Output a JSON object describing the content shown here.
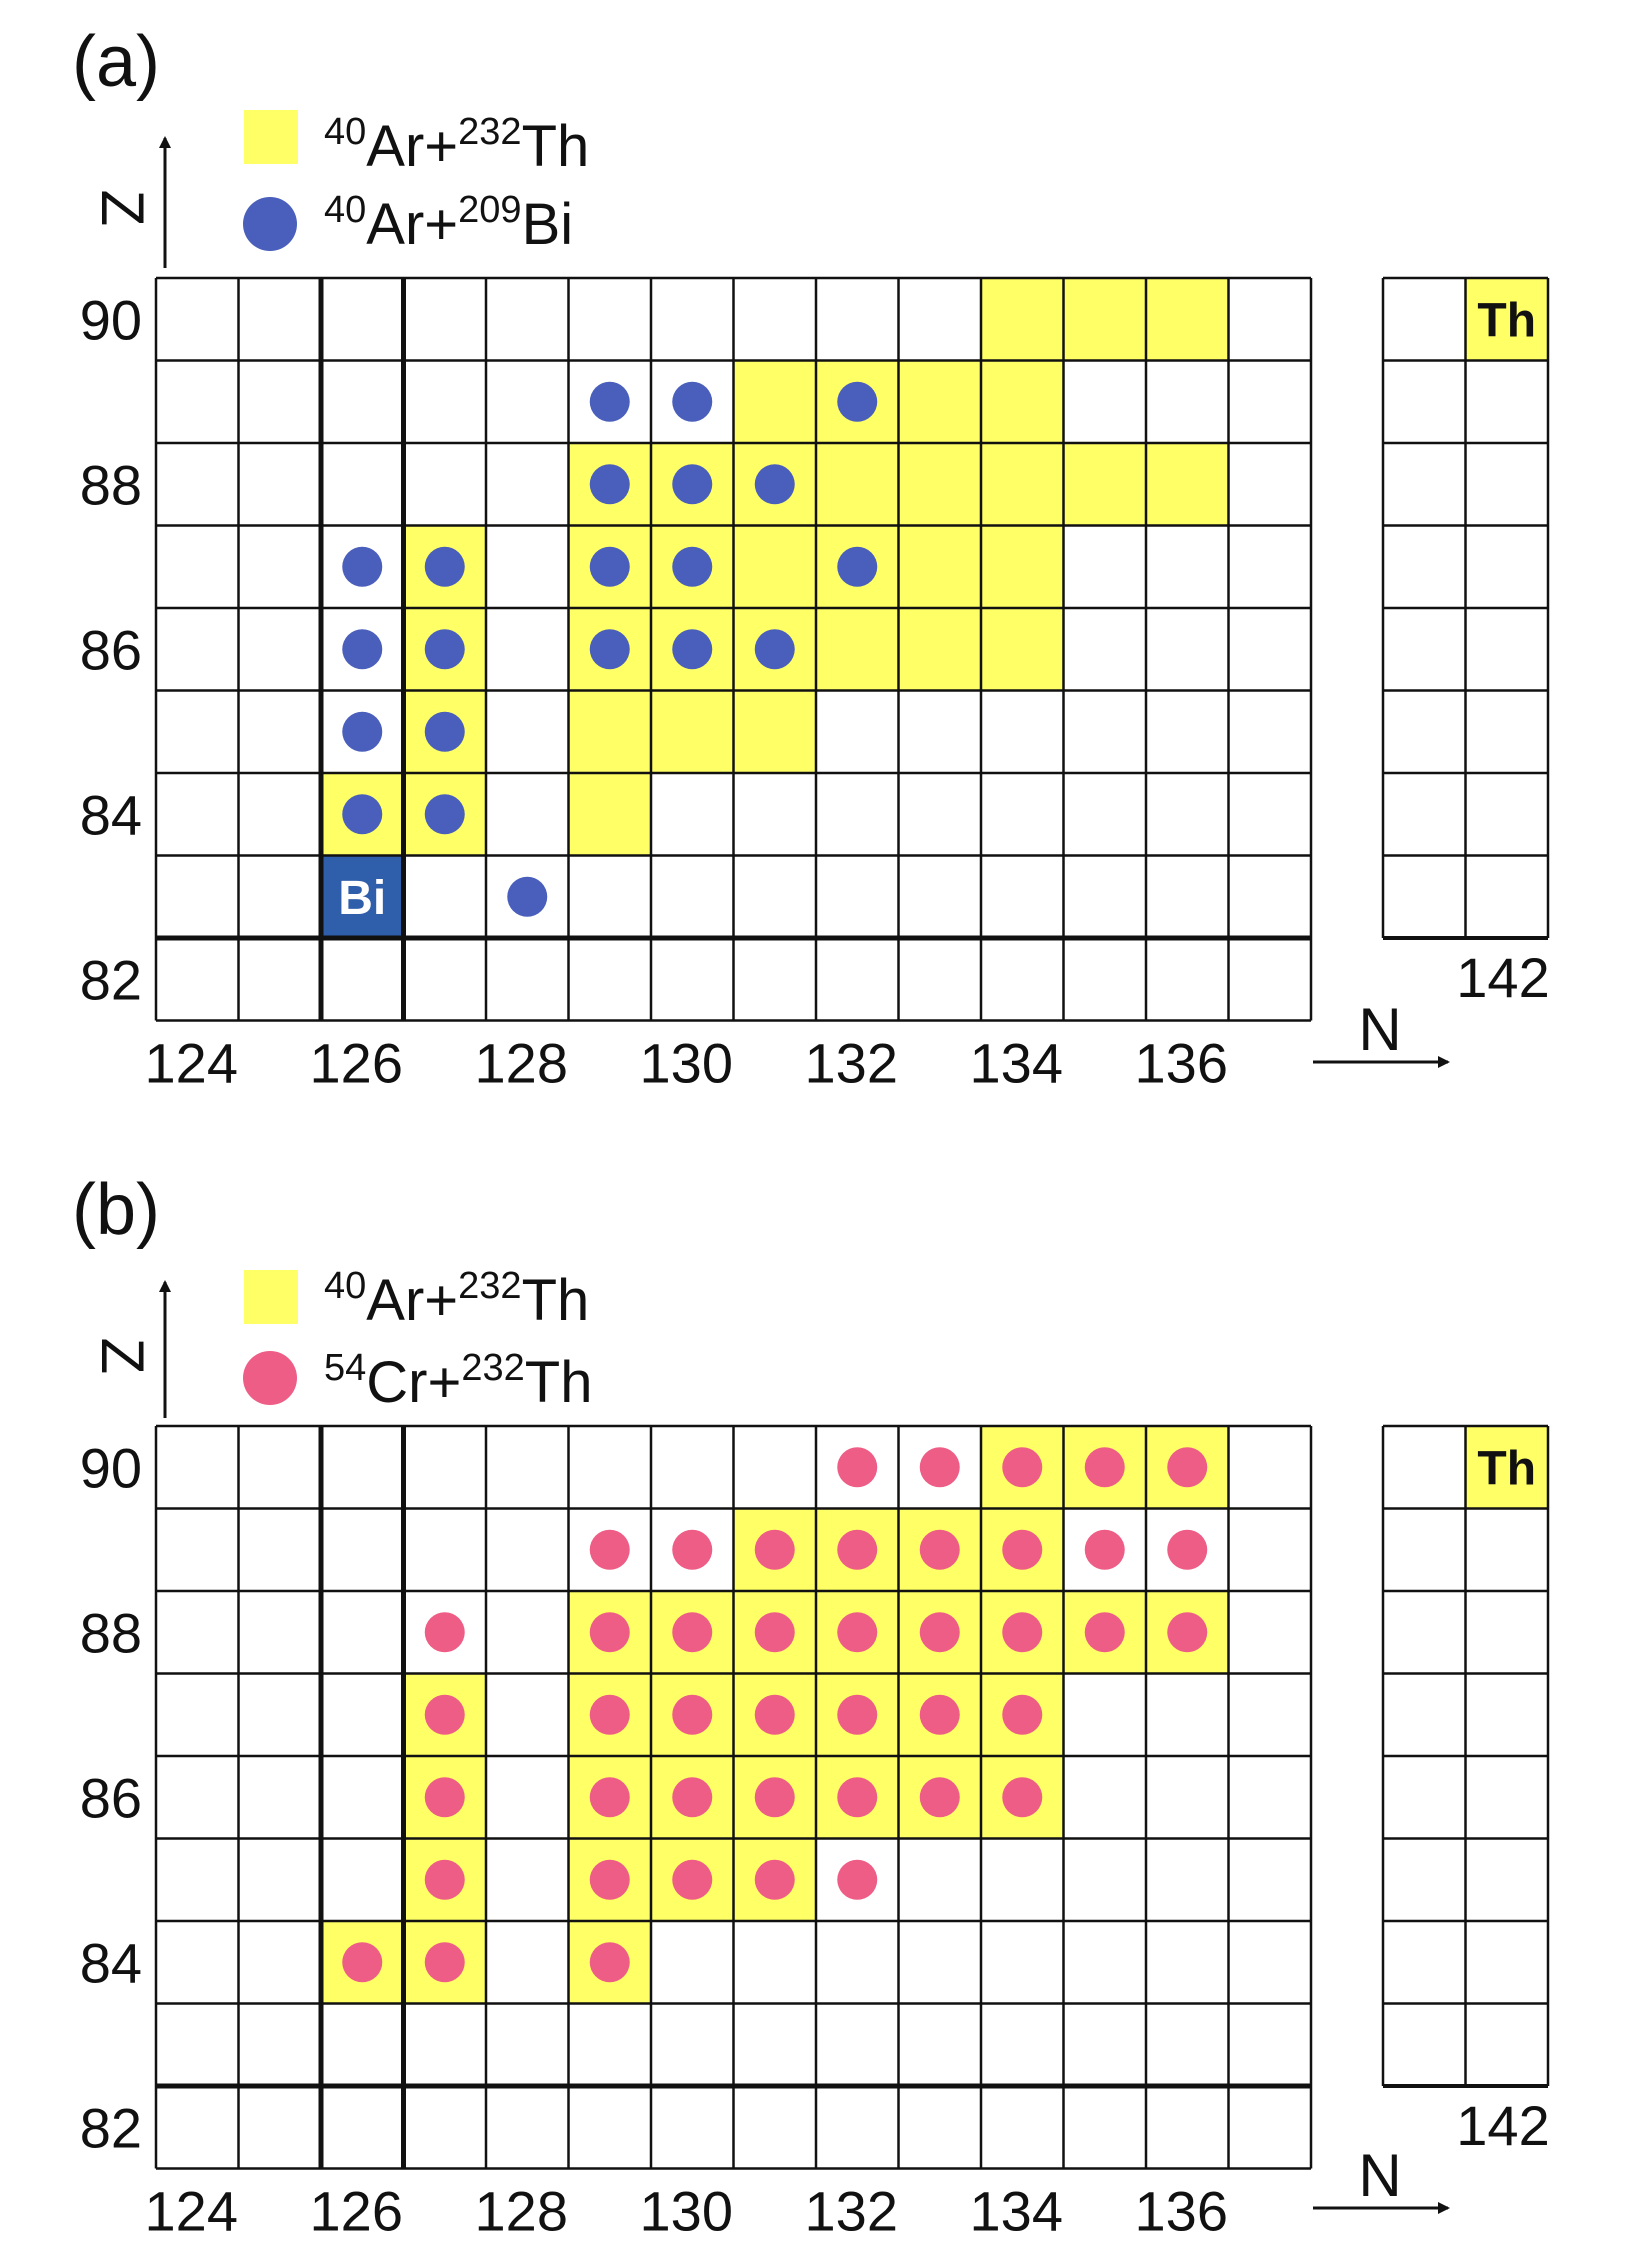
{
  "colors": {
    "yellow": "#FFFF66",
    "blue": "#4A5FBB",
    "pink": "#EE5D86",
    "bi_box": "#2F5EAA",
    "grid": "#111111",
    "background": "#FFFFFF"
  },
  "panels": [
    {
      "id": "a",
      "panel_label": "(a)",
      "legend": [
        {
          "marker": "yellow-square",
          "mass_a": "40",
          "elem_a": "Ar+",
          "mass_b": "232",
          "elem_b": "Th"
        },
        {
          "marker": "blue-circle",
          "mass_a": "40",
          "elem_a": "Ar+",
          "mass_b": "209",
          "elem_b": "Bi"
        }
      ],
      "y_axis_label": "Z",
      "x_axis_label": "N",
      "y_ticks": [
        "82",
        "84",
        "86",
        "88",
        "90"
      ],
      "x_ticks": [
        "124",
        "126",
        "128",
        "130",
        "132",
        "134",
        "136"
      ],
      "inset_x_tick": "142",
      "inset_symbol": "Th",
      "target_symbol": "Bi",
      "target_cell": [
        126,
        83
      ],
      "inset_cell": [
        142,
        90
      ],
      "yellow_cells": [
        [
          126,
          84
        ],
        [
          127,
          84
        ],
        [
          129,
          84
        ],
        [
          127,
          85
        ],
        [
          129,
          85
        ],
        [
          130,
          85
        ],
        [
          131,
          85
        ],
        [
          127,
          86
        ],
        [
          129,
          86
        ],
        [
          130,
          86
        ],
        [
          131,
          86
        ],
        [
          132,
          86
        ],
        [
          133,
          86
        ],
        [
          134,
          86
        ],
        [
          127,
          87
        ],
        [
          129,
          87
        ],
        [
          130,
          87
        ],
        [
          131,
          87
        ],
        [
          132,
          87
        ],
        [
          133,
          87
        ],
        [
          134,
          87
        ],
        [
          129,
          88
        ],
        [
          130,
          88
        ],
        [
          131,
          88
        ],
        [
          132,
          88
        ],
        [
          133,
          88
        ],
        [
          134,
          88
        ],
        [
          135,
          88
        ],
        [
          136,
          88
        ],
        [
          131,
          89
        ],
        [
          132,
          89
        ],
        [
          133,
          89
        ],
        [
          134,
          89
        ],
        [
          134,
          90
        ],
        [
          135,
          90
        ],
        [
          136,
          90
        ]
      ],
      "dot_cells": [
        [
          126,
          84
        ],
        [
          127,
          84
        ],
        [
          128,
          83
        ],
        [
          126,
          85
        ],
        [
          127,
          85
        ],
        [
          126,
          86
        ],
        [
          127,
          86
        ],
        [
          129,
          86
        ],
        [
          130,
          86
        ],
        [
          131,
          86
        ],
        [
          126,
          87
        ],
        [
          127,
          87
        ],
        [
          129,
          87
        ],
        [
          130,
          87
        ],
        [
          132,
          87
        ],
        [
          129,
          88
        ],
        [
          130,
          88
        ],
        [
          131,
          88
        ],
        [
          129,
          89
        ],
        [
          130,
          89
        ],
        [
          132,
          89
        ]
      ]
    },
    {
      "id": "b",
      "panel_label": "(b)",
      "legend": [
        {
          "marker": "yellow-square",
          "mass_a": "40",
          "elem_a": "Ar+",
          "mass_b": "232",
          "elem_b": "Th"
        },
        {
          "marker": "pink-circle",
          "mass_a": "54",
          "elem_a": "Cr+",
          "mass_b": "232",
          "elem_b": "Th"
        }
      ],
      "y_axis_label": "Z",
      "x_axis_label": "N",
      "y_ticks": [
        "82",
        "84",
        "86",
        "88",
        "90"
      ],
      "x_ticks": [
        "124",
        "126",
        "128",
        "130",
        "132",
        "134",
        "136"
      ],
      "inset_x_tick": "142",
      "inset_symbol": "Th",
      "target_symbol": "",
      "inset_cell": [
        142,
        90
      ],
      "yellow_cells": [
        [
          126,
          84
        ],
        [
          127,
          84
        ],
        [
          129,
          84
        ],
        [
          127,
          85
        ],
        [
          129,
          85
        ],
        [
          130,
          85
        ],
        [
          131,
          85
        ],
        [
          127,
          86
        ],
        [
          129,
          86
        ],
        [
          130,
          86
        ],
        [
          131,
          86
        ],
        [
          132,
          86
        ],
        [
          133,
          86
        ],
        [
          134,
          86
        ],
        [
          127,
          87
        ],
        [
          129,
          87
        ],
        [
          130,
          87
        ],
        [
          131,
          87
        ],
        [
          132,
          87
        ],
        [
          133,
          87
        ],
        [
          134,
          87
        ],
        [
          129,
          88
        ],
        [
          130,
          88
        ],
        [
          131,
          88
        ],
        [
          132,
          88
        ],
        [
          133,
          88
        ],
        [
          134,
          88
        ],
        [
          135,
          88
        ],
        [
          136,
          88
        ],
        [
          131,
          89
        ],
        [
          132,
          89
        ],
        [
          133,
          89
        ],
        [
          134,
          89
        ],
        [
          134,
          90
        ],
        [
          135,
          90
        ],
        [
          136,
          90
        ]
      ],
      "dot_cells": [
        [
          126,
          84
        ],
        [
          127,
          84
        ],
        [
          129,
          84
        ],
        [
          127,
          85
        ],
        [
          129,
          85
        ],
        [
          130,
          85
        ],
        [
          131,
          85
        ],
        [
          132,
          85
        ],
        [
          127,
          86
        ],
        [
          129,
          86
        ],
        [
          130,
          86
        ],
        [
          131,
          86
        ],
        [
          132,
          86
        ],
        [
          133,
          86
        ],
        [
          134,
          86
        ],
        [
          127,
          87
        ],
        [
          129,
          87
        ],
        [
          130,
          87
        ],
        [
          131,
          87
        ],
        [
          132,
          87
        ],
        [
          133,
          87
        ],
        [
          134,
          87
        ],
        [
          127,
          88
        ],
        [
          129,
          88
        ],
        [
          130,
          88
        ],
        [
          131,
          88
        ],
        [
          132,
          88
        ],
        [
          133,
          88
        ],
        [
          134,
          88
        ],
        [
          135,
          88
        ],
        [
          136,
          88
        ],
        [
          129,
          89
        ],
        [
          130,
          89
        ],
        [
          131,
          89
        ],
        [
          132,
          89
        ],
        [
          133,
          89
        ],
        [
          134,
          89
        ],
        [
          135,
          89
        ],
        [
          136,
          89
        ],
        [
          132,
          90
        ],
        [
          133,
          90
        ],
        [
          134,
          90
        ],
        [
          135,
          90
        ],
        [
          136,
          90
        ]
      ]
    }
  ]
}
